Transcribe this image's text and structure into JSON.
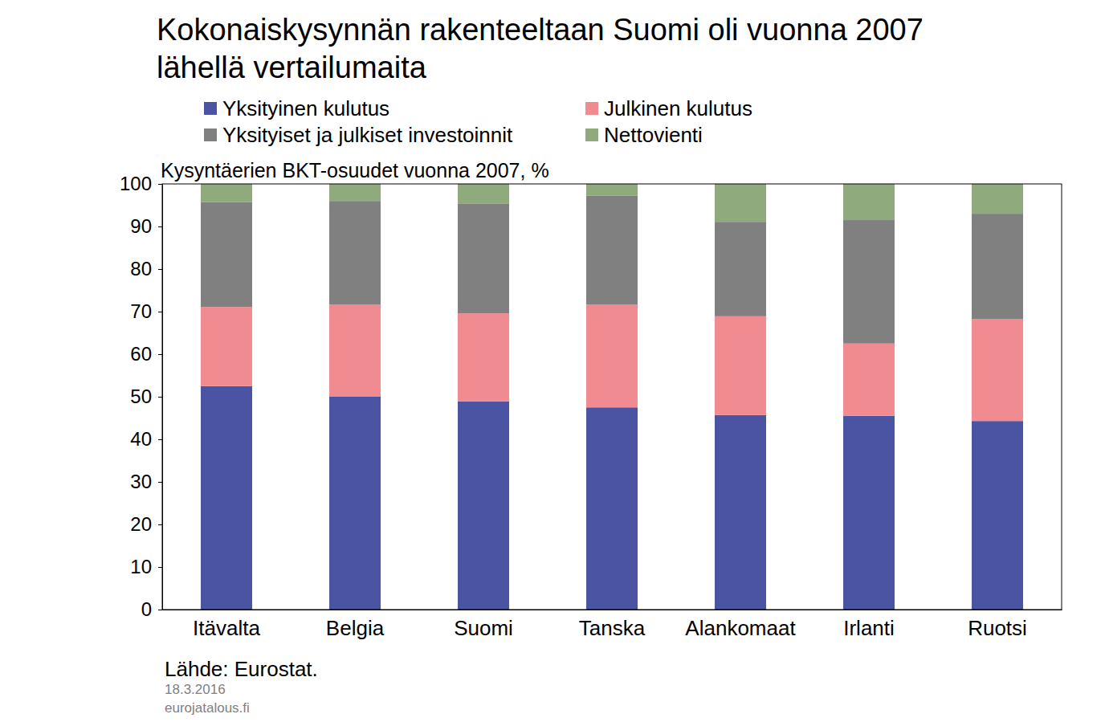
{
  "chart_data": {
    "type": "bar",
    "stacked": true,
    "title": "Kokonaiskysynnän rakenteeltaan Suomi oli vuonna 2007 lähellä vertailumaita",
    "subtitle": "Kysyntäerien BKT-osuudet vuonna 2007, %",
    "source": "Lähde: Eurostat.",
    "date": "18.3.2016",
    "site": "eurojatalous.fi",
    "categories": [
      "Itävalta",
      "Belgia",
      "Suomi",
      "Tanska",
      "Alankomaat",
      "Irlanti",
      "Ruotsi"
    ],
    "series": [
      {
        "name": "Yksityinen kulutus",
        "color": "#4b53a3",
        "values": [
          52.5,
          50.0,
          48.9,
          47.5,
          45.7,
          45.5,
          44.3
        ]
      },
      {
        "name": "Julkinen kulutus",
        "color": "#f08b91",
        "values": [
          18.6,
          21.7,
          20.7,
          24.2,
          23.2,
          17.0,
          24.0
        ]
      },
      {
        "name": "Yksityiset ja julkiset investoinnit",
        "color": "#808080",
        "values": [
          24.6,
          24.3,
          25.7,
          25.5,
          22.2,
          29.0,
          24.7
        ]
      },
      {
        "name": "Nettovienti",
        "color": "#8faa7c",
        "values": [
          4.3,
          4.0,
          4.7,
          2.8,
          8.9,
          8.5,
          7.0
        ]
      }
    ],
    "ylim": [
      0,
      100
    ],
    "yticks": [
      0,
      10,
      20,
      30,
      40,
      50,
      60,
      70,
      80,
      90,
      100
    ],
    "grid": false,
    "legend": "top"
  }
}
